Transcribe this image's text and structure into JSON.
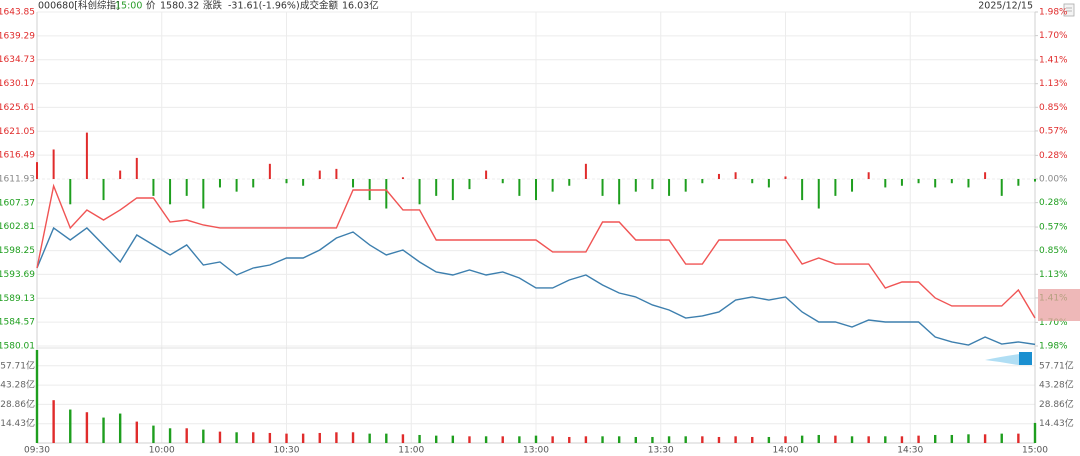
{
  "header": {
    "code": "000680[科创综指]",
    "time": "15:00",
    "price_label": "价",
    "price": "1580.32",
    "change_label": "涨跌",
    "change": "-31.61(-1.96%)",
    "amount_label": "成交金额",
    "amount": "16.03亿",
    "date": "2025/12/15"
  },
  "chart_data": [
    {
      "type": "line",
      "xlim": [
        0,
        240
      ],
      "x": [
        0,
        4,
        8,
        12,
        16,
        20,
        24,
        28,
        32,
        36,
        40,
        44,
        48,
        52,
        56,
        60,
        64,
        68,
        72,
        76,
        80,
        84,
        88,
        92,
        96,
        100,
        104,
        108,
        112,
        116,
        120,
        124,
        128,
        132,
        136,
        140,
        144,
        148,
        152,
        156,
        160,
        164,
        168,
        172,
        176,
        180,
        184,
        188,
        192,
        196,
        200,
        204,
        208,
        212,
        216,
        220,
        224,
        228,
        232,
        236,
        240
      ],
      "ylim": [
        1580.01,
        1643.85
      ],
      "yticks": [
        1643.85,
        1639.29,
        1634.73,
        1630.17,
        1625.61,
        1621.05,
        1616.49,
        1611.93,
        1607.37,
        1602.81,
        1598.25,
        1593.69,
        1589.13,
        1584.57,
        1580.01
      ],
      "y2lim": [
        -1.98,
        1.98
      ],
      "y2ticks": [
        {
          "value": 1.98,
          "label": "1.98%"
        },
        {
          "value": 1.7,
          "label": "1.70%"
        },
        {
          "value": 1.41,
          "label": "1.41%"
        },
        {
          "value": 1.13,
          "label": "1.13%"
        },
        {
          "value": 0.85,
          "label": "0.85%"
        },
        {
          "value": 0.57,
          "label": "0.57%"
        },
        {
          "value": 0.28,
          "label": "0.28%"
        },
        {
          "value": 0,
          "label": "0.00%"
        },
        {
          "value": -0.28,
          "label": "0.28%"
        },
        {
          "value": -0.57,
          "label": "0.57%"
        },
        {
          "value": -0.85,
          "label": "0.85%"
        },
        {
          "value": -1.13,
          "label": "1.13%"
        },
        {
          "value": -1.41,
          "label": "1.41%"
        },
        {
          "value": -1.7,
          "label": "1.70%"
        },
        {
          "value": -1.98,
          "label": "1.98%"
        }
      ],
      "up_color": "#e02b2b",
      "down_color": "#1e9e1e",
      "flat_color": "#888888",
      "series": [
        {
          "type": "line",
          "color": "#3d7fae",
          "values": [
            1594.92,
            1602.57,
            1600.27,
            1602.57,
            1599.32,
            1596.07,
            1601.23,
            1599.32,
            1597.41,
            1599.32,
            1595.49,
            1596.07,
            1593.58,
            1594.92,
            1595.49,
            1596.83,
            1596.83,
            1598.36,
            1600.65,
            1601.8,
            1599.32,
            1597.41,
            1598.36,
            1596.07,
            1594.16,
            1593.58,
            1594.54,
            1593.58,
            1594.16,
            1593.01,
            1591.1,
            1591.1,
            1592.63,
            1593.58,
            1591.67,
            1590.14,
            1589.38,
            1587.85,
            1586.89,
            1585.36,
            1585.75,
            1586.51,
            1588.8,
            1589.38,
            1588.8,
            1589.38,
            1586.51,
            1584.6,
            1584.6,
            1583.64,
            1584.98,
            1584.6,
            1584.6,
            1584.6,
            1581.73,
            1580.78,
            1580.2,
            1581.73,
            1580.39,
            1580.78,
            1580.32
          ]
        },
        {
          "type": "line",
          "color": "#f05454",
          "values": [
            1594.92,
            1610.59,
            1602.57,
            1606.01,
            1604.09,
            1606.01,
            1608.3,
            1608.3,
            1603.71,
            1604.09,
            1603.14,
            1602.57,
            1602.57,
            1602.57,
            1602.57,
            1602.57,
            1602.57,
            1602.57,
            1602.57,
            1609.83,
            1609.83,
            1609.83,
            1606.01,
            1606.01,
            1600.27,
            1600.27,
            1600.27,
            1600.27,
            1600.27,
            1600.27,
            1600.27,
            1597.98,
            1597.98,
            1597.98,
            1603.71,
            1603.71,
            1600.27,
            1600.27,
            1600.27,
            1595.68,
            1595.68,
            1600.27,
            1600.27,
            1600.27,
            1600.27,
            1600.27,
            1595.68,
            1596.83,
            1595.68,
            1595.68,
            1595.68,
            1591.1,
            1592.24,
            1592.24,
            1589.19,
            1587.66,
            1587.66,
            1587.66,
            1587.66,
            1590.72,
            1585.36
          ]
        },
        {
          "type": "bar",
          "axis": "y2",
          "values": [
            0.2,
            0.35,
            -0.3,
            0.55,
            -0.25,
            0.1,
            0.25,
            -0.2,
            -0.3,
            -0.2,
            -0.35,
            -0.1,
            -0.15,
            -0.1,
            0.18,
            -0.05,
            -0.08,
            0.1,
            0.12,
            -0.1,
            -0.25,
            -0.35,
            0.02,
            -0.3,
            -0.2,
            -0.25,
            -0.12,
            0.1,
            -0.05,
            -0.2,
            -0.25,
            -0.15,
            -0.08,
            0.18,
            -0.2,
            -0.3,
            -0.15,
            -0.12,
            -0.2,
            -0.15,
            -0.05,
            0.06,
            0.08,
            -0.05,
            -0.1,
            0.03,
            -0.25,
            -0.35,
            -0.2,
            -0.15,
            0.08,
            -0.1,
            -0.08,
            -0.05,
            -0.1,
            -0.05,
            -0.1,
            0.08,
            -0.2,
            -0.08,
            -0.03
          ]
        }
      ]
    },
    {
      "type": "bar",
      "xlim": [
        0,
        240
      ],
      "x": [
        0,
        4,
        8,
        12,
        16,
        20,
        24,
        28,
        32,
        36,
        40,
        44,
        48,
        52,
        56,
        60,
        64,
        68,
        72,
        76,
        80,
        84,
        88,
        92,
        96,
        100,
        104,
        108,
        112,
        116,
        120,
        124,
        128,
        132,
        136,
        140,
        144,
        148,
        152,
        156,
        160,
        164,
        168,
        172,
        176,
        180,
        184,
        188,
        192,
        196,
        200,
        204,
        208,
        212,
        216,
        220,
        224,
        228,
        232,
        236,
        240
      ],
      "xticks": [
        {
          "value": 0,
          "label": "09:30"
        },
        {
          "value": 30,
          "label": "10:00"
        },
        {
          "value": 60,
          "label": "10:30"
        },
        {
          "value": 90,
          "label": "11:00"
        },
        {
          "value": 120,
          "label": "13:00"
        },
        {
          "value": 150,
          "label": "13:30"
        },
        {
          "value": 180,
          "label": "14:00"
        },
        {
          "value": 210,
          "label": "14:30"
        },
        {
          "value": 240,
          "label": "15:00"
        }
      ],
      "ylim": [
        0,
        69.5
      ],
      "yticks": [
        {
          "value": 57.71,
          "label": "57.71亿"
        },
        {
          "value": 43.28,
          "label": "43.28亿"
        },
        {
          "value": 28.86,
          "label": "28.86亿"
        },
        {
          "value": 14.43,
          "label": "14.43亿"
        }
      ],
      "values": [
        69.5,
        32,
        25,
        23,
        19,
        22,
        16,
        13,
        11,
        11,
        10,
        8.5,
        8,
        8,
        7.5,
        7,
        7,
        7.5,
        8,
        8,
        7,
        7,
        6.5,
        6,
        5.5,
        5.5,
        5,
        5,
        5,
        5,
        5.5,
        5,
        4.5,
        5,
        5,
        5,
        4.5,
        4.5,
        5,
        5,
        5,
        4.5,
        5,
        4.5,
        4.5,
        5,
        5.5,
        6,
        5.5,
        5,
        5,
        5,
        5,
        5.5,
        6,
        6,
        6.5,
        6.5,
        7,
        7,
        15
      ]
    }
  ]
}
